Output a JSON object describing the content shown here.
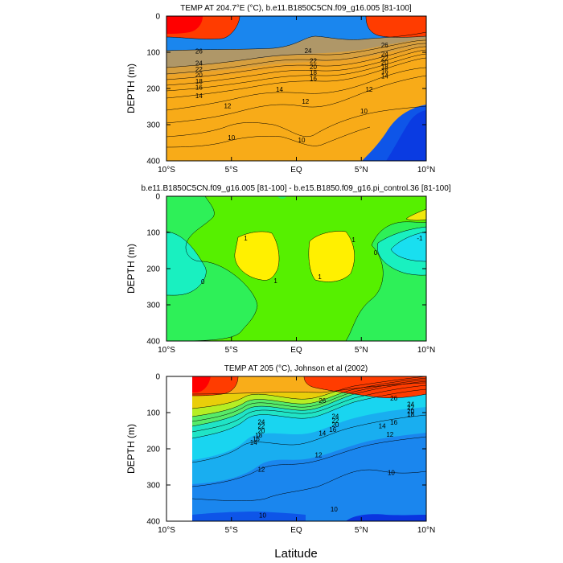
{
  "figure": {
    "xlabel": "Latitude"
  },
  "chart_data": [
    {
      "type": "heatmap",
      "title": "TEMP AT 204.7°E (°C), b.e11.B1850C5CN.f09_g16.005 [81-100]",
      "xlabel": "",
      "ylabel": "DEPTH (m)",
      "xlim": [
        -10,
        10
      ],
      "ylim": [
        400,
        0
      ],
      "xticks": [
        "10°S",
        "5°S",
        "EQ",
        "5°N",
        "10°N"
      ],
      "yticks": [
        "0",
        "100",
        "200",
        "300",
        "400"
      ],
      "contour_labels": [
        {
          "text": "26",
          "lat": 6.8,
          "depth": 80
        },
        {
          "text": "24",
          "lat": 6.8,
          "depth": 104
        },
        {
          "text": "22",
          "lat": 6.8,
          "depth": 117
        },
        {
          "text": "20",
          "lat": 6.8,
          "depth": 128
        },
        {
          "text": "18",
          "lat": 6.8,
          "depth": 140
        },
        {
          "text": "16",
          "lat": 6.8,
          "depth": 152
        },
        {
          "text": "14",
          "lat": 6.8,
          "depth": 165
        },
        {
          "text": "26",
          "lat": -7.5,
          "depth": 97
        },
        {
          "text": "24",
          "lat": -7.5,
          "depth": 130
        },
        {
          "text": "22",
          "lat": -7.5,
          "depth": 147
        },
        {
          "text": "20",
          "lat": -7.5,
          "depth": 162
        },
        {
          "text": "18",
          "lat": -7.5,
          "depth": 180
        },
        {
          "text": "16",
          "lat": -7.5,
          "depth": 197
        },
        {
          "text": "14",
          "lat": -7.5,
          "depth": 220
        },
        {
          "text": "24",
          "lat": 0.9,
          "depth": 95
        },
        {
          "text": "22",
          "lat": 1.3,
          "depth": 123
        },
        {
          "text": "20",
          "lat": 1.3,
          "depth": 140
        },
        {
          "text": "18",
          "lat": 1.3,
          "depth": 156
        },
        {
          "text": "16",
          "lat": 1.3,
          "depth": 172
        },
        {
          "text": "14",
          "lat": -1.3,
          "depth": 202
        },
        {
          "text": "12",
          "lat": -5.3,
          "depth": 248
        },
        {
          "text": "12",
          "lat": 0.7,
          "depth": 235
        },
        {
          "text": "12",
          "lat": 5.6,
          "depth": 202
        },
        {
          "text": "10",
          "lat": -5.0,
          "depth": 335
        },
        {
          "text": "10",
          "lat": 0.4,
          "depth": 342
        },
        {
          "text": "10",
          "lat": 5.2,
          "depth": 262
        }
      ]
    },
    {
      "type": "heatmap",
      "title": "b.e11.B1850C5CN.f09_g16.005 [81-100] - b.e15.B1850.f09_g16.pi_control.36 [81-100]",
      "xlabel": "",
      "ylabel": "DEPTH (m)",
      "xlim": [
        -10,
        10
      ],
      "ylim": [
        400,
        0
      ],
      "xticks": [
        "10°S",
        "5°S",
        "EQ",
        "5°N",
        "10°N"
      ],
      "yticks": [
        "0",
        "100",
        "200",
        "300",
        "400"
      ],
      "contour_labels": [
        {
          "text": "1",
          "lat": -3.9,
          "depth": 115
        },
        {
          "text": "1",
          "lat": -1.6,
          "depth": 233
        },
        {
          "text": "1",
          "lat": 4.4,
          "depth": 120
        },
        {
          "text": "1",
          "lat": 1.8,
          "depth": 222
        },
        {
          "text": "0",
          "lat": 6.1,
          "depth": 155
        },
        {
          "text": "0",
          "lat": -7.2,
          "depth": 235
        },
        {
          "text": "-1",
          "lat": 9.5,
          "depth": 115
        }
      ]
    },
    {
      "type": "heatmap",
      "title": "TEMP AT 205 (°C), Johnson et al (2002)",
      "xlabel": "",
      "ylabel": "DEPTH (m)",
      "xlim": [
        -10,
        10
      ],
      "ylim": [
        400,
        0
      ],
      "xticks": [
        "10°S",
        "5°S",
        "EQ",
        "5°N",
        "10°N"
      ],
      "yticks": [
        "0",
        "100",
        "200",
        "300",
        "400"
      ],
      "data_lat_start": -8,
      "contour_labels": [
        {
          "text": "26",
          "lat": 2.0,
          "depth": 67
        },
        {
          "text": "26",
          "lat": 7.5,
          "depth": 60
        },
        {
          "text": "24",
          "lat": -2.7,
          "depth": 125
        },
        {
          "text": "22",
          "lat": -2.7,
          "depth": 137
        },
        {
          "text": "20",
          "lat": -2.7,
          "depth": 150
        },
        {
          "text": "18",
          "lat": -2.9,
          "depth": 162
        },
        {
          "text": "16",
          "lat": -3.1,
          "depth": 172
        },
        {
          "text": "14",
          "lat": -3.3,
          "depth": 182
        },
        {
          "text": "24",
          "lat": 3.0,
          "depth": 110
        },
        {
          "text": "22",
          "lat": 3.0,
          "depth": 122
        },
        {
          "text": "20",
          "lat": 3.0,
          "depth": 133
        },
        {
          "text": "16",
          "lat": 2.8,
          "depth": 147
        },
        {
          "text": "14",
          "lat": 2.0,
          "depth": 157
        },
        {
          "text": "24",
          "lat": 8.8,
          "depth": 77
        },
        {
          "text": "22",
          "lat": 8.8,
          "depth": 86
        },
        {
          "text": "20",
          "lat": 8.8,
          "depth": 95
        },
        {
          "text": "18",
          "lat": 8.8,
          "depth": 104
        },
        {
          "text": "16",
          "lat": 7.5,
          "depth": 127
        },
        {
          "text": "14",
          "lat": 6.6,
          "depth": 137
        },
        {
          "text": "12",
          "lat": 7.2,
          "depth": 160
        },
        {
          "text": "12",
          "lat": -2.7,
          "depth": 257
        },
        {
          "text": "12",
          "lat": 1.7,
          "depth": 217
        },
        {
          "text": "10",
          "lat": -2.6,
          "depth": 383
        },
        {
          "text": "10",
          "lat": 2.9,
          "depth": 367
        },
        {
          "text": "10",
          "lat": 7.3,
          "depth": 265
        }
      ]
    }
  ]
}
